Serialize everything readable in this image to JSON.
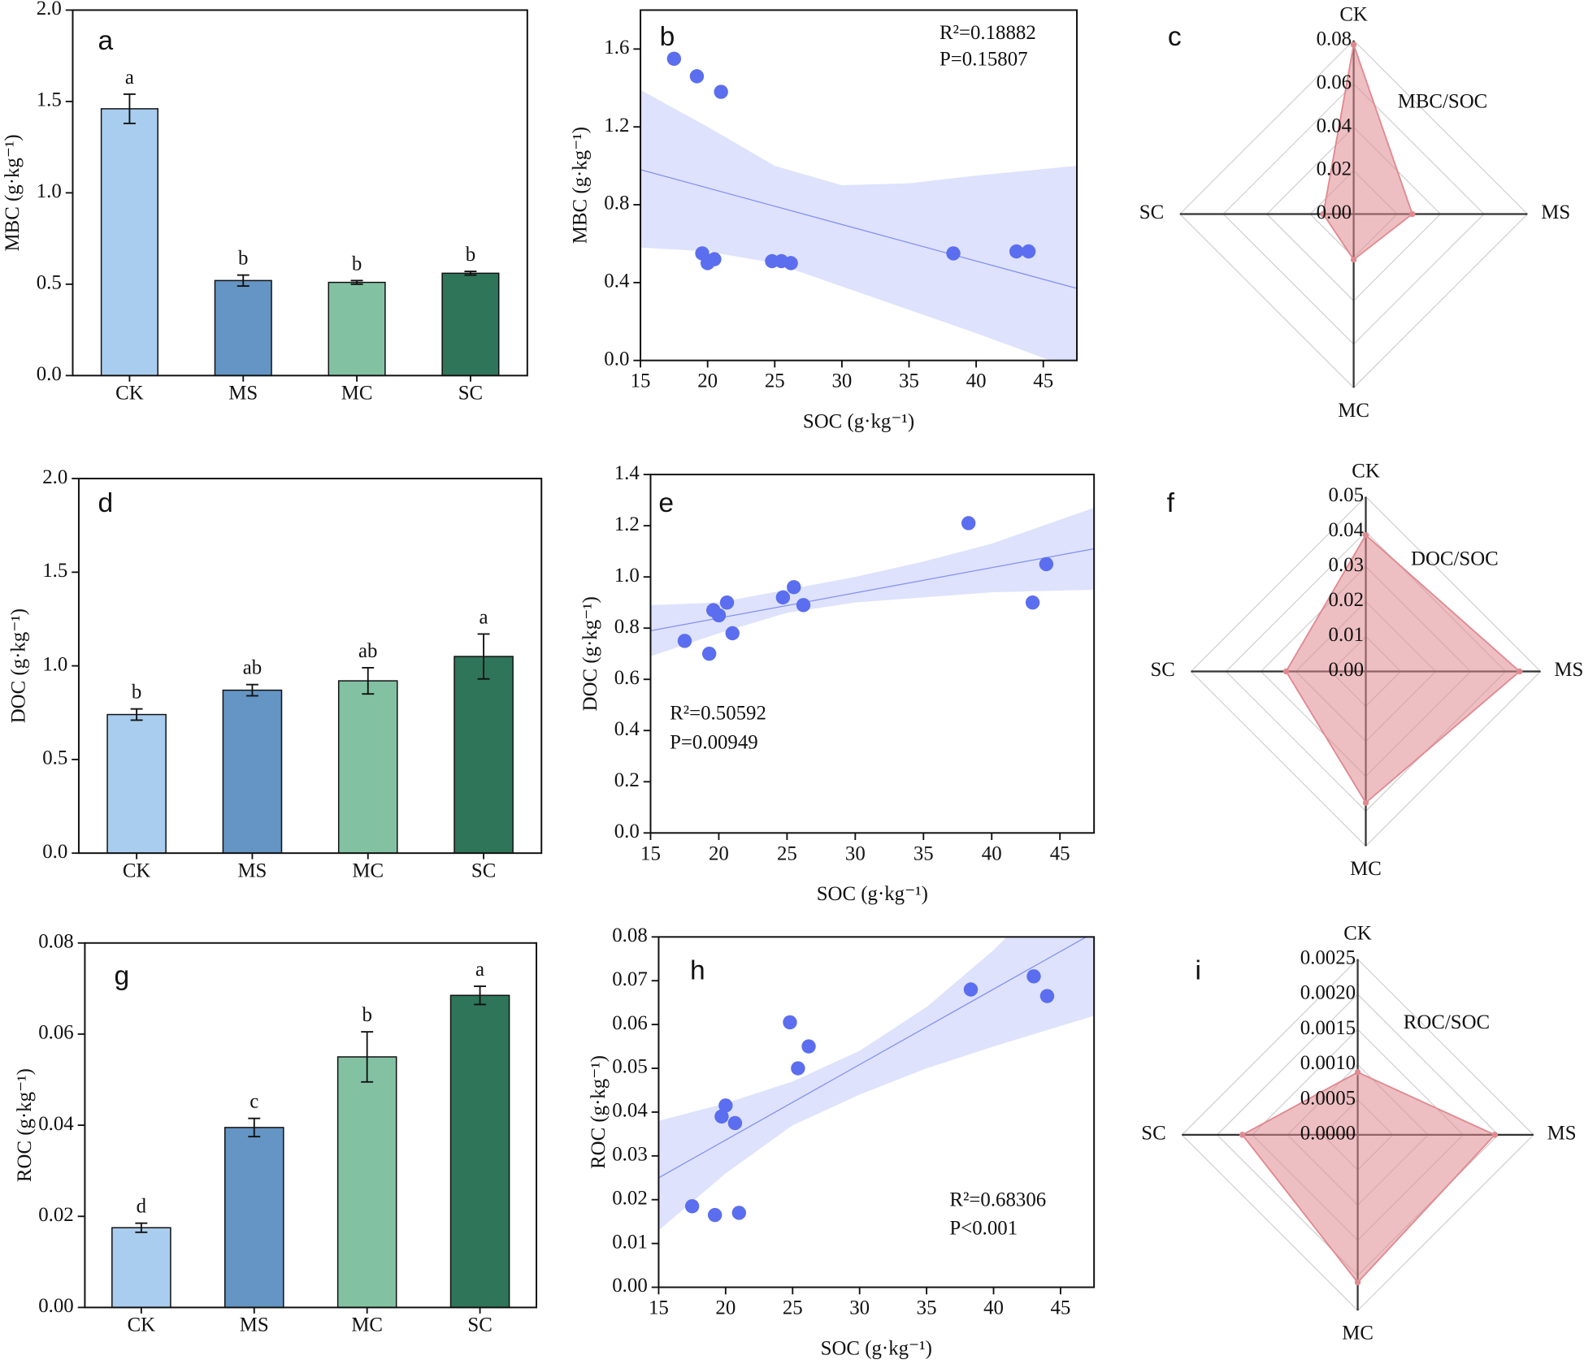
{
  "chart_data": [
    {
      "type": "bar",
      "panel": "a",
      "categories": [
        "CK",
        "MS",
        "MC",
        "SC"
      ],
      "values": [
        1.46,
        0.52,
        0.51,
        0.56
      ],
      "errors": [
        0.08,
        0.03,
        0.01,
        0.01
      ],
      "significance": [
        "a",
        "b",
        "b",
        "b"
      ],
      "colors": [
        "#a9cdee",
        "#6495c4",
        "#82c2a3",
        "#2e7559"
      ],
      "ylabel": "MBC (g·kg⁻¹)",
      "ylim": [
        0,
        2
      ],
      "yticks": [
        {
          "value": 0,
          "label": "0.0"
        },
        0.5,
        {
          "value": 1,
          "label": "1.0"
        },
        1.5,
        {
          "value": 2,
          "label": "2.0"
        }
      ]
    },
    {
      "type": "scatter",
      "panel": "b",
      "x": [
        17.5,
        19.2,
        21,
        19.6,
        20,
        20.5,
        24.8,
        25.5,
        26.2,
        38.3,
        43,
        43.9
      ],
      "values": [
        1.55,
        1.46,
        1.38,
        0.55,
        0.5,
        0.52,
        0.51,
        0.51,
        0.5,
        0.55,
        0.56,
        0.56
      ],
      "color": "#5b6ef0",
      "fit": {
        "x": [
          15,
          47.5
        ],
        "y": [
          0.98,
          0.37
        ]
      },
      "band": {
        "x": [
          15,
          20,
          25,
          30,
          35,
          40,
          47.5
        ],
        "lower": [
          0.58,
          0.56,
          0.5,
          0.38,
          0.26,
          0.14,
          -0.05
        ],
        "upper": [
          1.39,
          1.2,
          1.0,
          0.9,
          0.91,
          0.95,
          1.0
        ]
      },
      "annotations": [
        "R²=0.18882",
        "P=0.15807"
      ],
      "xlabel": "SOC (g·kg⁻¹)",
      "ylabel": "MBC (g·kg⁻¹)",
      "xlim": [
        15,
        47.5
      ],
      "xticks": [
        15,
        20,
        25,
        30,
        35,
        40,
        45
      ],
      "ylim": [
        0,
        1.8
      ],
      "yticks": [
        {
          "value": 0,
          "label": "0.0"
        },
        0.4,
        0.8,
        1.2,
        1.6
      ]
    },
    {
      "type": "radar",
      "panel": "c",
      "name": "MBC/SOC",
      "categories": [
        "CK",
        "MS",
        "MC",
        "SC"
      ],
      "values": [
        0.078,
        0.027,
        0.021,
        0.014
      ],
      "color": "#e08a90",
      "rlim": [
        0,
        0.08
      ],
      "rticks": [
        {
          "value": 0,
          "label": "0.00"
        },
        0.02,
        0.04,
        0.06,
        0.08
      ]
    },
    {
      "type": "bar",
      "panel": "d",
      "categories": [
        "CK",
        "MS",
        "MC",
        "SC"
      ],
      "values": [
        0.74,
        0.87,
        0.92,
        1.05
      ],
      "errors": [
        0.03,
        0.03,
        0.07,
        0.12
      ],
      "significance": [
        "b",
        "ab",
        "ab",
        "a"
      ],
      "colors": [
        "#a9cdee",
        "#6495c4",
        "#82c2a3",
        "#2e7559"
      ],
      "ylabel": "DOC (g·kg⁻¹)",
      "ylim": [
        0,
        2
      ],
      "yticks": [
        {
          "value": 0,
          "label": "0.0"
        },
        0.5,
        {
          "value": 1,
          "label": "1.0"
        },
        1.5,
        {
          "value": 2,
          "label": "2.0"
        }
      ]
    },
    {
      "type": "scatter",
      "panel": "e",
      "x": [
        17.5,
        19.3,
        19.6,
        20,
        20.6,
        21,
        24.7,
        25.5,
        26.2,
        38.3,
        43,
        44
      ],
      "values": [
        0.75,
        0.7,
        0.87,
        0.85,
        0.9,
        0.78,
        0.92,
        0.96,
        0.89,
        1.21,
        0.9,
        1.05
      ],
      "color": "#5b6ef0",
      "fit": {
        "x": [
          15,
          47.5
        ],
        "y": [
          0.79,
          1.11
        ]
      },
      "band": {
        "x": [
          15,
          20,
          25,
          30,
          35,
          40,
          47.5
        ],
        "lower": [
          0.69,
          0.78,
          0.86,
          0.9,
          0.92,
          0.94,
          0.95
        ],
        "upper": [
          0.89,
          0.9,
          0.95,
          1.0,
          1.06,
          1.13,
          1.27
        ]
      },
      "annotations": [
        "R²=0.50592",
        "P=0.00949"
      ],
      "xlabel": "SOC (g·kg⁻¹)",
      "ylabel": "DOC (g·kg⁻¹)",
      "xlim": [
        15,
        47.5
      ],
      "xticks": [
        15,
        20,
        25,
        30,
        35,
        40,
        45
      ],
      "ylim": [
        0,
        1.4
      ],
      "yticks": [
        {
          "value": 0,
          "label": "0.0"
        },
        0.2,
        0.4,
        0.6,
        0.8,
        {
          "value": 1,
          "label": "1.0"
        },
        1.2,
        1.4
      ]
    },
    {
      "type": "radar",
      "panel": "f",
      "name": "DOC/SOC",
      "categories": [
        "CK",
        "MS",
        "MC",
        "SC"
      ],
      "values": [
        0.039,
        0.044,
        0.0376,
        0.0228
      ],
      "color": "#e08a90",
      "rlim": [
        0,
        0.05
      ],
      "rticks": [
        {
          "value": 0,
          "label": "0.00"
        },
        0.01,
        0.02,
        0.03,
        0.04,
        0.05
      ]
    },
    {
      "type": "bar",
      "panel": "g",
      "categories": [
        "CK",
        "MS",
        "MC",
        "SC"
      ],
      "values": [
        0.0175,
        0.0395,
        0.055,
        0.0685
      ],
      "errors": [
        0.001,
        0.002,
        0.0055,
        0.002
      ],
      "significance": [
        "d",
        "c",
        "b",
        "a"
      ],
      "colors": [
        "#a9cdee",
        "#6495c4",
        "#82c2a3",
        "#2e7559"
      ],
      "ylabel": "ROC (g·kg⁻¹)",
      "ylim": [
        0,
        0.08
      ],
      "yticks": [
        {
          "value": 0,
          "label": "0.00"
        },
        0.02,
        0.04,
        0.06,
        0.08
      ]
    },
    {
      "type": "scatter",
      "panel": "h",
      "x": [
        17.5,
        19.2,
        21,
        19.7,
        20,
        20.7,
        24.8,
        25.4,
        26.2,
        38.3,
        43,
        44
      ],
      "values": [
        0.0185,
        0.0165,
        0.017,
        0.039,
        0.0415,
        0.0375,
        0.0605,
        0.05,
        0.055,
        0.068,
        0.071,
        0.0665
      ],
      "color": "#5b6ef0",
      "fit": {
        "x": [
          15,
          47.5
        ],
        "y": [
          0.025,
          0.081
        ]
      },
      "band": {
        "x": [
          15,
          20,
          25,
          30,
          35,
          40,
          47.5
        ],
        "lower": [
          0.013,
          0.026,
          0.037,
          0.044,
          0.05,
          0.055,
          0.062
        ],
        "upper": [
          0.038,
          0.042,
          0.047,
          0.054,
          0.064,
          0.077,
          0.1
        ]
      },
      "annotations": [
        "R²=0.68306",
        "P<0.001"
      ],
      "xlabel": "SOC (g·kg⁻¹)",
      "ylabel": "ROC (g·kg⁻¹)",
      "xlim": [
        15,
        47.5
      ],
      "xticks": [
        15,
        20,
        25,
        30,
        35,
        40,
        45
      ],
      "ylim": [
        0,
        0.08
      ],
      "yticks": [
        {
          "value": 0,
          "label": "0.00"
        },
        0.01,
        0.02,
        0.03,
        0.04,
        0.05,
        0.06,
        0.07,
        0.08
      ]
    },
    {
      "type": "radar",
      "panel": "i",
      "name": "ROC/SOC",
      "categories": [
        "CK",
        "MS",
        "MC",
        "SC"
      ],
      "values": [
        0.00089,
        0.00195,
        0.0021,
        0.00164
      ],
      "color": "#e08a90",
      "rlim": [
        0,
        0.0025
      ],
      "rticks": [
        {
          "value": 0,
          "label": "0.0000"
        },
        0.0005,
        {
          "value": 0.001,
          "label": "0.0010"
        },
        0.0015,
        {
          "value": 0.002,
          "label": "0.0020"
        },
        0.0025
      ]
    }
  ]
}
